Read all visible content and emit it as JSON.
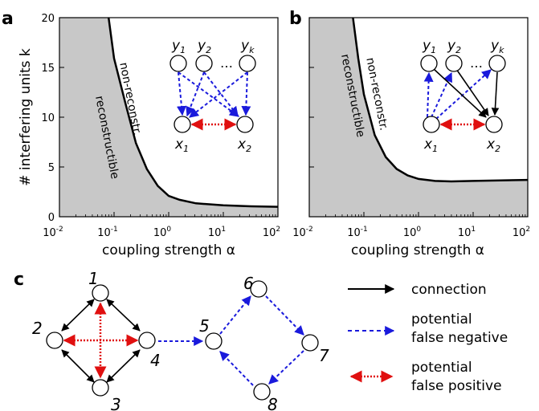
{
  "panels": {
    "a": {
      "letter": "a"
    },
    "b": {
      "letter": "b"
    },
    "c": {
      "letter": "c"
    }
  },
  "region_labels": {
    "reconstructible": "reconstructible",
    "non_reconstructible": "non-reconstr."
  },
  "chart_data": [
    {
      "panel": "a",
      "type": "area",
      "xlabel": "coupling strength α",
      "ylabel": "# interfering units k",
      "xscale": "log",
      "xlim": [
        0.01,
        100
      ],
      "ylim": [
        0,
        20
      ],
      "xticks": [
        {
          "base": "10",
          "exp": "-2"
        },
        {
          "base": "10",
          "exp": "-1"
        },
        {
          "base": "10",
          "exp": "0"
        },
        {
          "base": "10",
          "exp": "1"
        },
        {
          "base": "10",
          "exp": "2"
        }
      ],
      "yticks": [
        "0",
        "5",
        "10",
        "15",
        "20"
      ],
      "boundary": {
        "x": [
          0.0794,
          0.1,
          0.158,
          0.251,
          0.398,
          0.631,
          1.0,
          1.585,
          3.16,
          10,
          31.6,
          100
        ],
        "y": [
          20,
          15.9,
          11.6,
          7.4,
          4.8,
          3.1,
          2.1,
          1.7,
          1.35,
          1.15,
          1.05,
          1.0
        ]
      }
    },
    {
      "panel": "b",
      "type": "area",
      "xlabel": "coupling strength α",
      "ylabel": "",
      "xscale": "log",
      "xlim": [
        0.01,
        100
      ],
      "ylim": [
        0,
        20
      ],
      "xticks": [
        {
          "base": "10",
          "exp": "-2"
        },
        {
          "base": "10",
          "exp": "-1"
        },
        {
          "base": "10",
          "exp": "0"
        },
        {
          "base": "10",
          "exp": "1"
        },
        {
          "base": "10",
          "exp": "2"
        }
      ],
      "yticks": [],
      "boundary": {
        "x": [
          0.0631,
          0.079,
          0.1,
          0.158,
          0.251,
          0.398,
          0.631,
          1.0,
          2.0,
          3.98,
          10,
          31.6,
          100
        ],
        "y": [
          20,
          15.9,
          12.3,
          8.2,
          6.0,
          4.8,
          4.15,
          3.8,
          3.6,
          3.55,
          3.6,
          3.65,
          3.7
        ]
      }
    }
  ],
  "insets": {
    "a": {
      "top_nodes": [
        {
          "name": "y",
          "sub": "1"
        },
        {
          "name": "y",
          "sub": "2"
        },
        {
          "name": "y",
          "sub": "k"
        }
      ],
      "ellipsis": "…",
      "bottom_nodes": [
        {
          "name": "x",
          "sub": "1"
        },
        {
          "name": "x",
          "sub": "2"
        }
      ]
    },
    "b": {
      "top_nodes": [
        {
          "name": "y",
          "sub": "1"
        },
        {
          "name": "y",
          "sub": "2"
        },
        {
          "name": "y",
          "sub": "k"
        }
      ],
      "ellipsis": "…",
      "bottom_nodes": [
        {
          "name": "x",
          "sub": "1"
        },
        {
          "name": "x",
          "sub": "2"
        }
      ]
    }
  },
  "network": {
    "nodes": [
      "1",
      "2",
      "3",
      "4",
      "5",
      "6",
      "7",
      "8"
    ]
  },
  "legend": {
    "connection": "connection",
    "false_negative_1": "potential",
    "false_negative_2": "false negative",
    "false_positive_1": "potential",
    "false_positive_2": "false positive"
  },
  "colors": {
    "connection": "#000000",
    "false_negative": "#1a1adc",
    "false_positive": "#e01010",
    "region_fill": "#c8c8c8"
  }
}
